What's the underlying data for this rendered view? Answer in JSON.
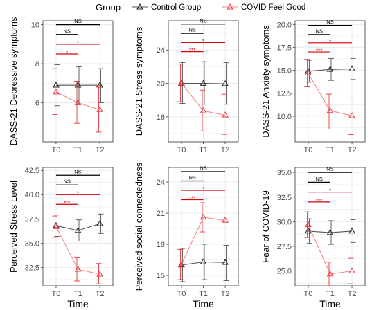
{
  "legend": {
    "title": "Group",
    "control_label": "Control Group",
    "covid_label": "COVID Feel Good",
    "control_color": "#555555",
    "covid_color": "#e8383d"
  },
  "colors": {
    "control_line": "#555555",
    "covid_line": "#f08a8c",
    "covid_errbar": "#e8383d",
    "sig_black": "#000000",
    "sig_red": "#d6000d",
    "panel_bg": "#ffffff",
    "grid": "#ebebeb"
  },
  "chart_data": [
    {
      "type": "line",
      "ylabel": "DASS-21 Depressive symptoms",
      "xlabel": "",
      "categories": [
        "T0",
        "T1",
        "T2"
      ],
      "ylim": [
        4.0,
        10.2
      ],
      "yticks": [
        6,
        8,
        10
      ],
      "ytick_labels": [
        "6",
        "8",
        "10"
      ],
      "series": [
        {
          "name": "Control Group",
          "values": [
            6.9,
            6.9,
            6.9
          ],
          "err_low": [
            5.85,
            5.95,
            6.0
          ],
          "err_high": [
            7.95,
            7.85,
            7.75
          ]
        },
        {
          "name": "COVID Feel Good",
          "values": [
            6.55,
            6.0,
            5.65
          ],
          "err_low": [
            5.4,
            4.95,
            4.5
          ],
          "err_high": [
            7.75,
            7.1,
            6.8
          ]
        }
      ],
      "annotations": [
        {
          "from": "T0",
          "to": "T2",
          "label": "NS",
          "color": "black",
          "y": 10.0
        },
        {
          "from": "T0",
          "to": "T1",
          "label": "NS",
          "color": "black",
          "y": 9.5
        },
        {
          "from": "T0",
          "to": "T2",
          "label": "*",
          "color": "red",
          "y": 9.0
        },
        {
          "from": "T0",
          "to": "T1",
          "label": "*",
          "color": "red",
          "y": 8.5
        }
      ]
    },
    {
      "type": "line",
      "ylabel": "DASS-21 Stress symptoms",
      "xlabel": "",
      "categories": [
        "T0",
        "T1",
        "T2"
      ],
      "ylim": [
        13.0,
        27.5
      ],
      "yticks": [
        16,
        20,
        24
      ],
      "ytick_labels": [
        "16",
        "20",
        "24"
      ],
      "series": [
        {
          "name": "Control Group",
          "values": [
            20.0,
            20.0,
            19.95
          ],
          "err_low": [
            17.6,
            17.5,
            17.5
          ],
          "err_high": [
            22.5,
            22.6,
            22.5
          ]
        },
        {
          "name": "COVID Feel Good",
          "values": [
            20.05,
            16.7,
            16.2
          ],
          "err_low": [
            17.8,
            14.3,
            13.9
          ],
          "err_high": [
            22.3,
            19.2,
            18.7
          ]
        }
      ],
      "annotations": [
        {
          "from": "T0",
          "to": "T2",
          "label": "NS",
          "color": "black",
          "y": 27.1
        },
        {
          "from": "T0",
          "to": "T1",
          "label": "NS",
          "color": "black",
          "y": 26.0
        },
        {
          "from": "T0",
          "to": "T2",
          "label": "*",
          "color": "red",
          "y": 24.9
        },
        {
          "from": "T0",
          "to": "T1",
          "label": "***",
          "color": "red",
          "y": 23.8
        }
      ]
    },
    {
      "type": "line",
      "ylabel": "DASS-21 Anxiety symptoms",
      "xlabel": "",
      "categories": [
        "T0",
        "T1",
        "T2"
      ],
      "ylim": [
        7.2,
        20.4
      ],
      "yticks": [
        10.0,
        12.5,
        15.0,
        17.5,
        20.0
      ],
      "ytick_labels": [
        "10.0",
        "12.5",
        "15.0",
        "17.5",
        "20.0"
      ],
      "series": [
        {
          "name": "Control Group",
          "values": [
            14.9,
            15.1,
            15.15
          ],
          "err_low": [
            13.7,
            13.9,
            14.0
          ],
          "err_high": [
            16.1,
            16.3,
            16.3
          ]
        },
        {
          "name": "COVID Feel Good",
          "values": [
            14.7,
            10.6,
            10.05
          ],
          "err_low": [
            13.2,
            8.6,
            8.0
          ],
          "err_high": [
            16.2,
            12.4,
            12.0
          ]
        }
      ],
      "annotations": [
        {
          "from": "T0",
          "to": "T2",
          "label": "NS",
          "color": "black",
          "y": 19.9
        },
        {
          "from": "T0",
          "to": "T1",
          "label": "NS",
          "color": "black",
          "y": 18.9
        },
        {
          "from": "T0",
          "to": "T2",
          "label": "*",
          "color": "red",
          "y": 18.0
        },
        {
          "from": "T0",
          "to": "T1",
          "label": "***",
          "color": "red",
          "y": 17.0
        }
      ]
    },
    {
      "type": "line",
      "ylabel": "Perceived Stress Level",
      "xlabel": "Time",
      "categories": [
        "T0",
        "T1",
        "T2"
      ],
      "ylim": [
        30.6,
        42.8
      ],
      "yticks": [
        32.5,
        35.0,
        37.5,
        40.0,
        42.5
      ],
      "ytick_labels": [
        "32.5",
        "35.0",
        "37.5",
        "40.0",
        "42.5"
      ],
      "series": [
        {
          "name": "Control Group",
          "values": [
            36.8,
            36.3,
            37.0
          ],
          "err_low": [
            35.7,
            35.2,
            36.0
          ],
          "err_high": [
            37.9,
            37.4,
            38.0
          ]
        },
        {
          "name": "COVID Feel Good",
          "values": [
            36.7,
            32.3,
            31.8
          ],
          "err_low": [
            35.6,
            31.1,
            30.8
          ],
          "err_high": [
            37.8,
            33.5,
            32.9
          ]
        }
      ],
      "annotations": [
        {
          "from": "T0",
          "to": "T2",
          "label": "NS",
          "color": "black",
          "y": 42.0
        },
        {
          "from": "T0",
          "to": "T1",
          "label": "NS",
          "color": "black",
          "y": 41.0
        },
        {
          "from": "T0",
          "to": "T2",
          "label": "*",
          "color": "red",
          "y": 40.0
        },
        {
          "from": "T0",
          "to": "T1",
          "label": "***",
          "color": "red",
          "y": 39.0
        }
      ]
    },
    {
      "type": "line",
      "ylabel": "Perceived social connectedness",
      "xlabel": "Time",
      "categories": [
        "T0",
        "T1",
        "T2"
      ],
      "ylim": [
        14.0,
        25.4
      ],
      "yticks": [
        15,
        18,
        21,
        24
      ],
      "ytick_labels": [
        "15",
        "18",
        "21",
        "24"
      ],
      "series": [
        {
          "name": "Control Group",
          "values": [
            16.0,
            16.3,
            16.25
          ],
          "err_low": [
            14.4,
            14.6,
            14.5
          ],
          "err_high": [
            17.6,
            18.0,
            17.9
          ]
        },
        {
          "name": "COVID Feel Good",
          "values": [
            16.05,
            20.6,
            20.3
          ],
          "err_low": [
            14.6,
            19.2,
            18.9
          ],
          "err_high": [
            17.5,
            22.0,
            21.7
          ]
        }
      ],
      "annotations": [
        {
          "from": "T0",
          "to": "T2",
          "label": "NS",
          "color": "black",
          "y": 25.0
        },
        {
          "from": "T0",
          "to": "T1",
          "label": "NS",
          "color": "black",
          "y": 24.1
        },
        {
          "from": "T0",
          "to": "T2",
          "label": "*",
          "color": "red",
          "y": 23.2
        },
        {
          "from": "T0",
          "to": "T1",
          "label": "***",
          "color": "red",
          "y": 22.3
        }
      ]
    },
    {
      "type": "line",
      "ylabel": "Fear of COVID-19",
      "xlabel": "Time",
      "categories": [
        "T0",
        "T1",
        "T2"
      ],
      "ylim": [
        23.5,
        35.5
      ],
      "yticks": [
        25.0,
        27.5,
        30.0,
        32.5,
        35.0
      ],
      "ytick_labels": [
        "25.0",
        "27.5",
        "30.0",
        "32.5",
        "35.0"
      ],
      "series": [
        {
          "name": "Control Group",
          "values": [
            29.05,
            28.9,
            29.05
          ],
          "err_low": [
            27.8,
            27.7,
            27.9
          ],
          "err_high": [
            30.3,
            30.1,
            30.2
          ]
        },
        {
          "name": "COVID Feel Good",
          "values": [
            29.7,
            24.7,
            25.0
          ],
          "err_low": [
            28.4,
            23.5,
            23.7
          ],
          "err_high": [
            31.0,
            25.9,
            26.3
          ]
        }
      ],
      "annotations": [
        {
          "from": "T0",
          "to": "T2",
          "label": "NS",
          "color": "black",
          "y": 35.0
        },
        {
          "from": "T0",
          "to": "T1",
          "label": "NS",
          "color": "black",
          "y": 34.0
        },
        {
          "from": "T0",
          "to": "T2",
          "label": "*",
          "color": "red",
          "y": 33.0
        },
        {
          "from": "T0",
          "to": "T1",
          "label": "***",
          "color": "red",
          "y": 32.0
        }
      ]
    }
  ]
}
